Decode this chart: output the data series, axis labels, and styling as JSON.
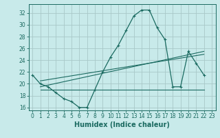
{
  "xlabel": "Humidex (Indice chaleur)",
  "background_color": "#c8eaea",
  "grid_color": "#a8c8c8",
  "line_color": "#1a6a60",
  "xlim": [
    -0.5,
    23.5
  ],
  "ylim": [
    15.5,
    33.5
  ],
  "xticks": [
    0,
    1,
    2,
    3,
    4,
    5,
    6,
    7,
    8,
    9,
    10,
    11,
    12,
    13,
    14,
    15,
    16,
    17,
    18,
    19,
    20,
    21,
    22,
    23
  ],
  "yticks": [
    16,
    18,
    20,
    22,
    24,
    26,
    28,
    30,
    32
  ],
  "line1_x": [
    0,
    1,
    2,
    3,
    4,
    5,
    6,
    7,
    8,
    9,
    10,
    11,
    12,
    13,
    14,
    15,
    16,
    17,
    18,
    19,
    20,
    21,
    22
  ],
  "line1_y": [
    21.5,
    20,
    19.5,
    18.5,
    17.5,
    17,
    16,
    16,
    19,
    22,
    24.5,
    26.5,
    29,
    31.5,
    32.5,
    32.5,
    29.5,
    27.5,
    19.5,
    19.5,
    25.5,
    23.5,
    21.5
  ],
  "line2_x": [
    1,
    22
  ],
  "line2_y": [
    19,
    19
  ],
  "line3_x": [
    1,
    22
  ],
  "line3_y": [
    19.5,
    25.5
  ],
  "line4_x": [
    1,
    22
  ],
  "line4_y": [
    20.5,
    25.0
  ],
  "xlabel_fontsize": 7,
  "tick_fontsize": 5.5
}
